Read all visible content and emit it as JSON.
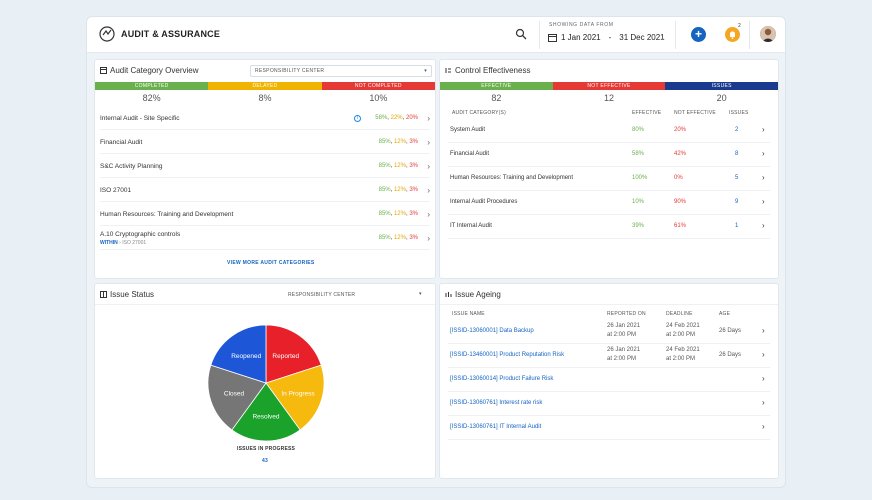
{
  "app": {
    "title": "AUDIT & ASSURANCE",
    "showing_label": "SHOWING DATA FROM",
    "date_from": "1 Jan 2021",
    "date_sep": "-",
    "date_to": "31 Dec 2021",
    "notification_count": "2"
  },
  "colors": {
    "green": "#6ab04c",
    "yellow": "#f0b400",
    "red": "#e53935",
    "navy": "#1a3a8f"
  },
  "audit_overview": {
    "title": "Audit Category Overview",
    "filter": "RESPONSIBILITY CENTER",
    "status": [
      {
        "label": "COMPLETED",
        "value": "82%"
      },
      {
        "label": "DELAYED",
        "value": "8%"
      },
      {
        "label": "NOT COMPLETED",
        "value": "10%"
      }
    ],
    "rows": [
      {
        "name": "Internal Audit - Site Specific",
        "g": "58%",
        "y": "22%",
        "r": "20%",
        "info": true
      },
      {
        "name": "Financial Audit",
        "g": "85%",
        "y": "12%",
        "r": "3%"
      },
      {
        "name": "S&C Activity Planning",
        "g": "85%",
        "y": "12%",
        "r": "3%"
      },
      {
        "name": "ISO 27001",
        "g": "85%",
        "y": "12%",
        "r": "3%"
      },
      {
        "name": "Human Resources: Training and Development",
        "g": "85%",
        "y": "12%",
        "r": "3%"
      },
      {
        "name": "A.10 Cryptographic controls",
        "sub_badge": "WITHIN",
        "sub_text": "ISO 27001",
        "g": "85%",
        "y": "12%",
        "r": "3%"
      }
    ],
    "sep": ",",
    "view_more": "VIEW MORE AUDIT CATEGORIES"
  },
  "control": {
    "title": "Control Effectiveness",
    "status": [
      {
        "label": "EFFECTIVE",
        "value": "82"
      },
      {
        "label": "NOT EFFECTIVE",
        "value": "12"
      },
      {
        "label": "ISSUES",
        "value": "20"
      }
    ],
    "headers": {
      "category": "AUDIT CATEGORY(S)",
      "effective": "EFFECTIVE",
      "not_effective": "NOT EFFECTIVE",
      "issues": "ISSUES"
    },
    "rows": [
      {
        "name": "System Audit",
        "eff": "80%",
        "neff": "20%",
        "issues": "2"
      },
      {
        "name": "Financial Audit",
        "eff": "58%",
        "neff": "42%",
        "issues": "8"
      },
      {
        "name": "Human Resources: Training and Development",
        "eff": "100%",
        "neff": "0%",
        "issues": "5"
      },
      {
        "name": "Internal Audit Procedures",
        "eff": "10%",
        "neff": "90%",
        "issues": "9"
      },
      {
        "name": "IT Internal Audit",
        "eff": "39%",
        "neff": "61%",
        "issues": "1"
      }
    ]
  },
  "issue_status": {
    "title": "Issue Status",
    "filter": "RESPONSIBILITY CENTER",
    "slices": [
      {
        "label": "Reported",
        "color": "#e8202a"
      },
      {
        "label": "In Progress",
        "color": "#f6b90e"
      },
      {
        "label": "Resolved",
        "color": "#1aa22a"
      },
      {
        "label": "Closed",
        "color": "#767676"
      },
      {
        "label": "Reopened",
        "color": "#1d57d8"
      }
    ],
    "caption": "ISSUES IN PROGRESS",
    "count": "43"
  },
  "issue_ageing": {
    "title": "Issue Ageing",
    "headers": {
      "name": "ISSUE NAME",
      "reported": "REPORTED ON",
      "deadline": "DEADLINE",
      "age": "AGE"
    },
    "rows": [
      {
        "name": "[ISSID-13060001] Data Backup",
        "reported": "26 Jan 2021",
        "reported_time": "at 2:00 PM",
        "deadline": "24 Feb 2021",
        "deadline_time": "at 2:00 PM",
        "age": "26 Days"
      },
      {
        "name": "[ISSID-13460001] Product Reputation Risk",
        "reported": "26 Jan 2021",
        "reported_time": "at 2:00 PM",
        "deadline": "24 Feb 2021",
        "deadline_time": "at 2:00 PM",
        "age": "26 Days"
      },
      {
        "name": "[ISSID-13060014] Product Failure Risk",
        "reported": "",
        "reported_time": "",
        "deadline": "",
        "deadline_time": "",
        "age": ""
      },
      {
        "name": "[ISSID-13060761] Interest rate risk",
        "reported": "",
        "reported_time": "",
        "deadline": "",
        "deadline_time": "",
        "age": ""
      },
      {
        "name": "[ISSID-13060761] IT Internal Audit",
        "reported": "",
        "reported_time": "",
        "deadline": "",
        "deadline_time": "",
        "age": ""
      }
    ]
  }
}
